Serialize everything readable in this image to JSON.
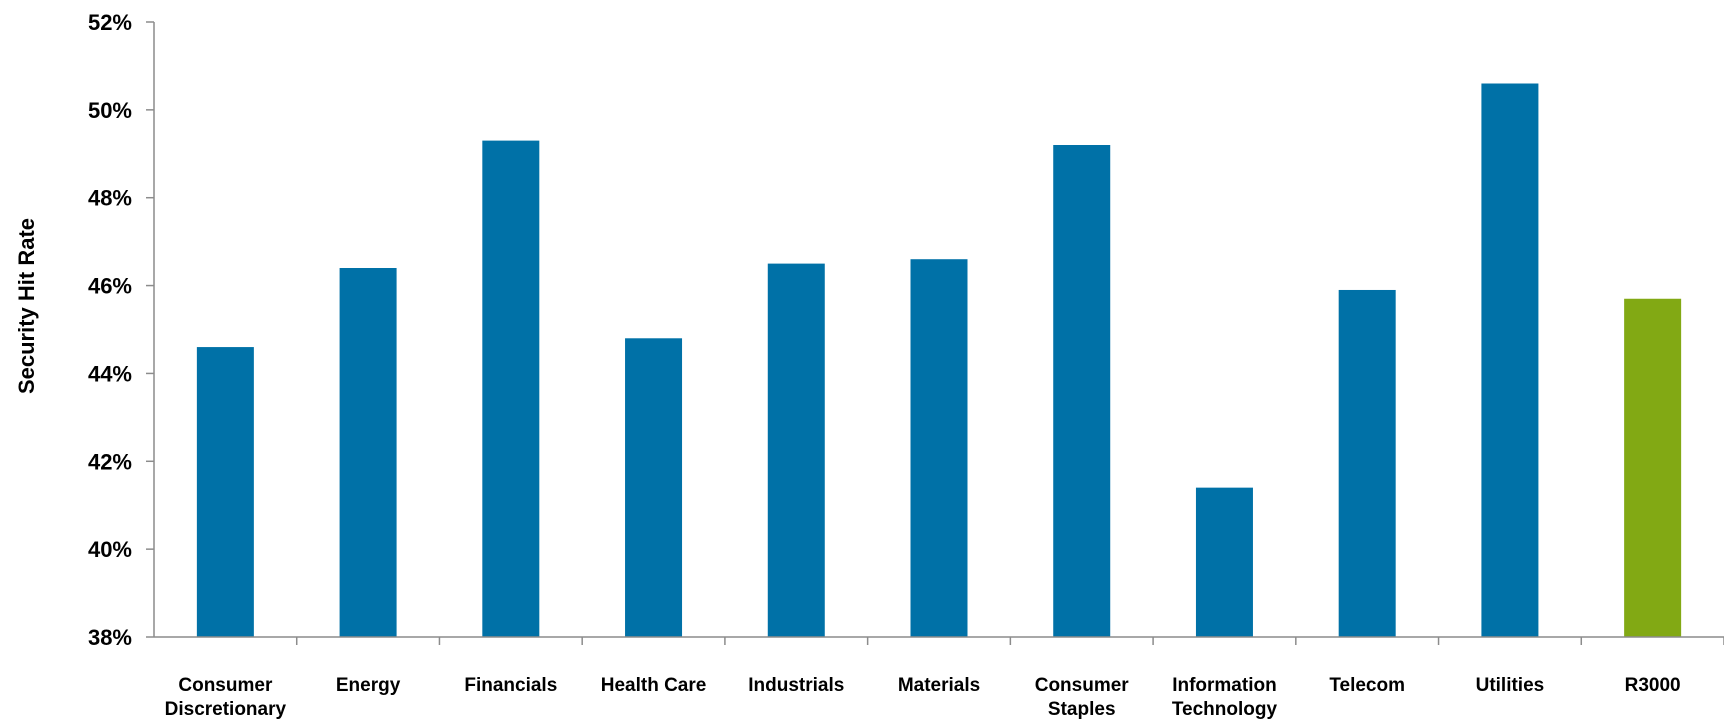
{
  "chart_data": {
    "type": "bar",
    "title": "",
    "xlabel": "",
    "ylabel": "Security Hit Rate",
    "ylim": [
      38,
      52
    ],
    "ytick_step": 2,
    "ytick_labels": [
      "38%",
      "40%",
      "42%",
      "44%",
      "46%",
      "48%",
      "50%",
      "52%"
    ],
    "grid": false,
    "legend": "none",
    "categories": [
      "Consumer Discretionary",
      "Energy",
      "Financials",
      "Health Care",
      "Industrials",
      "Materials",
      "Consumer Staples",
      "Information Technology",
      "Telecom",
      "Utilities",
      "R3000"
    ],
    "category_lines": [
      [
        "Consumer",
        "Discretionary"
      ],
      [
        "Energy"
      ],
      [
        "Financials"
      ],
      [
        "Health Care"
      ],
      [
        "Industrials"
      ],
      [
        "Materials"
      ],
      [
        "Consumer",
        "Staples"
      ],
      [
        "Information",
        "Technology"
      ],
      [
        "Telecom"
      ],
      [
        "Utilities"
      ],
      [
        "R3000"
      ]
    ],
    "values": [
      44.6,
      46.4,
      49.3,
      44.8,
      46.5,
      46.6,
      49.2,
      41.4,
      45.9,
      50.6,
      45.7
    ],
    "colors": {
      "sector": "#0071a7",
      "benchmark": "#82a914"
    },
    "bar_colors": [
      "#0071a7",
      "#0071a7",
      "#0071a7",
      "#0071a7",
      "#0071a7",
      "#0071a7",
      "#0071a7",
      "#0071a7",
      "#0071a7",
      "#0071a7",
      "#82a914"
    ]
  }
}
